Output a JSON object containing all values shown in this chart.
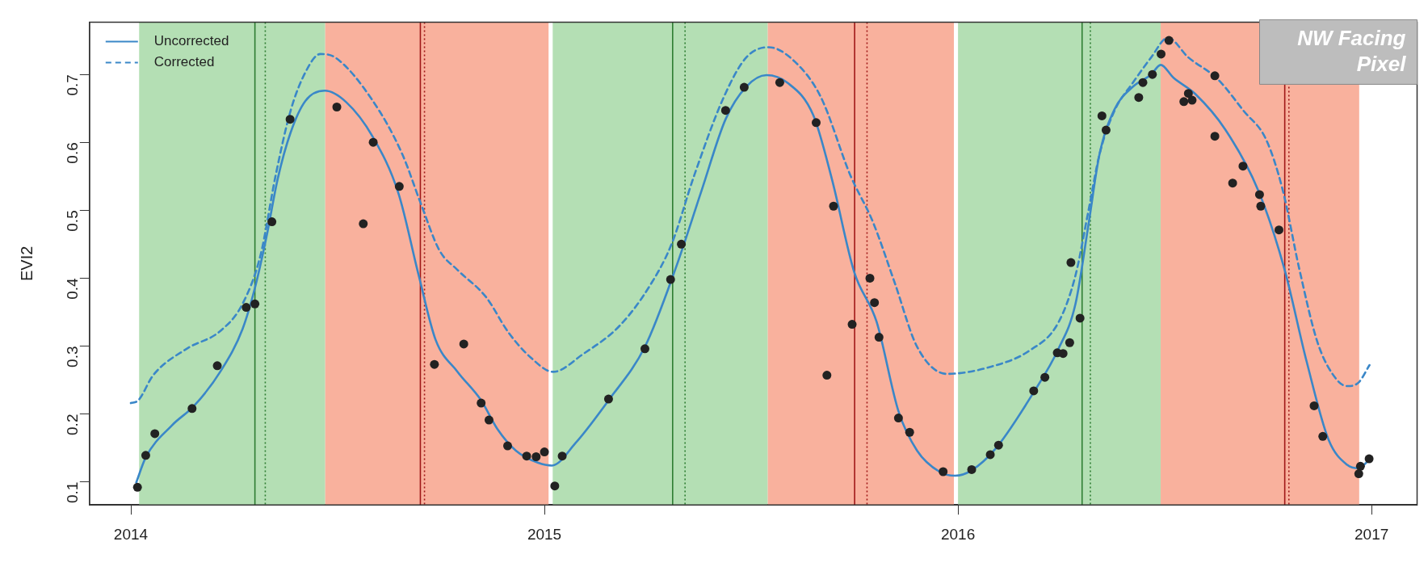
{
  "chart_data": {
    "type": "line",
    "ylabel": "EVI2",
    "xlim": [
      2013.9,
      2017.11
    ],
    "ylim": [
      0.066,
      0.777
    ],
    "xticks": [
      2014,
      2015,
      2016,
      2017
    ],
    "yticks": [
      0.1,
      0.2,
      0.3,
      0.4,
      0.5,
      0.6,
      0.7
    ],
    "grid": false,
    "legend": "top left",
    "annotations": [
      "NW Facing Pixel"
    ],
    "bands": [
      {
        "axis": "x",
        "from": 2014.02,
        "to": 2014.47,
        "color": "#b4dfb4"
      },
      {
        "axis": "x",
        "from": 2014.47,
        "to": 2015.01,
        "color": "#f9b19d"
      },
      {
        "axis": "x",
        "from": 2015.02,
        "to": 2015.54,
        "color": "#b4dfb4"
      },
      {
        "axis": "x",
        "from": 2015.54,
        "to": 2015.99,
        "color": "#f9b19d"
      },
      {
        "axis": "x",
        "from": 2016.0,
        "to": 2016.49,
        "color": "#b4dfb4"
      },
      {
        "axis": "x",
        "from": 2016.49,
        "to": 2016.97,
        "color": "#f9b19d"
      }
    ],
    "ref_lines": [
      {
        "axis": "x",
        "value": 2014.3,
        "color": "#2e7d32",
        "line_style": "solid"
      },
      {
        "axis": "x",
        "value": 2014.325,
        "color": "#2e7d32",
        "line_style": "dotted"
      },
      {
        "axis": "x",
        "value": 2014.7,
        "color": "#a01818",
        "line_style": "solid"
      },
      {
        "axis": "x",
        "value": 2014.71,
        "color": "#a01818",
        "line_style": "dotted"
      },
      {
        "axis": "x",
        "value": 2015.31,
        "color": "#2e7d32",
        "line_style": "solid"
      },
      {
        "axis": "x",
        "value": 2015.34,
        "color": "#2e7d32",
        "line_style": "dotted"
      },
      {
        "axis": "x",
        "value": 2015.75,
        "color": "#a01818",
        "line_style": "solid"
      },
      {
        "axis": "x",
        "value": 2015.78,
        "color": "#a01818",
        "line_style": "dotted"
      },
      {
        "axis": "x",
        "value": 2016.3,
        "color": "#2e7d32",
        "line_style": "solid"
      },
      {
        "axis": "x",
        "value": 2016.32,
        "color": "#2e7d32",
        "line_style": "dotted"
      },
      {
        "axis": "x",
        "value": 2016.79,
        "color": "#a01818",
        "line_style": "solid"
      },
      {
        "axis": "x",
        "value": 2016.8,
        "color": "#a01818",
        "line_style": "dotted"
      }
    ],
    "series": [
      {
        "name": "Uncorrected",
        "type": "line",
        "color": "#3a87c8",
        "marker": "none",
        "line_style": "solid",
        "x": [
          2014.013,
          2014.036,
          2014.099,
          2014.153,
          2014.216,
          2014.27,
          2014.301,
          2014.328,
          2014.355,
          2014.386,
          2014.422,
          2014.469,
          2014.521,
          2014.584,
          2014.647,
          2014.696,
          2014.737,
          2014.79,
          2014.847,
          2014.886,
          2014.931,
          2014.985,
          2015.018,
          2015.075,
          2015.155,
          2015.243,
          2015.317,
          2015.38,
          2015.438,
          2015.488,
          2015.537,
          2015.587,
          2015.65,
          2015.695,
          2015.749,
          2015.803,
          2015.856,
          2015.901,
          2015.955,
          2015.993,
          2016.033,
          2016.091,
          2016.181,
          2016.243,
          2016.284,
          2016.315,
          2016.342,
          2016.378,
          2016.423,
          2016.467,
          2016.49,
          2016.521,
          2016.574,
          2016.646,
          2016.726,
          2016.789,
          2016.843,
          2016.896,
          2016.941,
          2016.968,
          2016.995
        ],
        "values": [
          0.099,
          0.136,
          0.183,
          0.212,
          0.262,
          0.325,
          0.388,
          0.461,
          0.546,
          0.614,
          0.661,
          0.676,
          0.659,
          0.609,
          0.525,
          0.404,
          0.309,
          0.262,
          0.22,
          0.178,
          0.146,
          0.128,
          0.124,
          0.157,
          0.22,
          0.299,
          0.414,
          0.529,
          0.634,
          0.682,
          0.699,
          0.688,
          0.64,
          0.546,
          0.409,
          0.336,
          0.204,
          0.146,
          0.115,
          0.109,
          0.117,
          0.149,
          0.23,
          0.296,
          0.362,
          0.477,
          0.582,
          0.648,
          0.682,
          0.7,
          0.714,
          0.695,
          0.671,
          0.619,
          0.529,
          0.414,
          0.277,
          0.162,
          0.125,
          0.12,
          0.133
        ]
      },
      {
        "name": "Corrected",
        "type": "line",
        "color": "#3a87c8",
        "marker": "none",
        "line_style": "dashed",
        "x": [
          2014.0,
          2014.018,
          2014.054,
          2014.135,
          2014.216,
          2014.27,
          2014.314,
          2014.35,
          2014.386,
          2014.422,
          2014.458,
          2014.494,
          2014.584,
          2014.656,
          2014.701,
          2014.746,
          2014.79,
          2014.859,
          2014.913,
          2014.967,
          2015.021,
          2015.093,
          2015.182,
          2015.254,
          2015.308,
          2015.362,
          2015.434,
          2015.488,
          2015.542,
          2015.605,
          2015.668,
          2015.74,
          2015.794,
          2015.847,
          2015.901,
          2015.973,
          2016.082,
          2016.172,
          2016.243,
          2016.284,
          2016.315,
          2016.342,
          2016.378,
          2016.423,
          2016.467,
          2016.507,
          2016.557,
          2016.628,
          2016.691,
          2016.745,
          2016.785,
          2016.825,
          2016.87,
          2016.915,
          2016.941,
          2016.968,
          2016.995
        ],
        "values": [
          0.216,
          0.22,
          0.257,
          0.296,
          0.322,
          0.362,
          0.435,
          0.551,
          0.646,
          0.703,
          0.73,
          0.725,
          0.662,
          0.583,
          0.51,
          0.441,
          0.412,
          0.372,
          0.32,
          0.283,
          0.262,
          0.288,
          0.33,
          0.388,
          0.451,
          0.551,
          0.667,
          0.725,
          0.74,
          0.719,
          0.667,
          0.551,
          0.483,
          0.393,
          0.299,
          0.259,
          0.27,
          0.293,
          0.335,
          0.404,
          0.498,
          0.582,
          0.646,
          0.688,
          0.725,
          0.754,
          0.725,
          0.693,
          0.646,
          0.604,
          0.53,
          0.414,
          0.304,
          0.251,
          0.241,
          0.246,
          0.272
        ]
      },
      {
        "type": "scatter",
        "color": "#222222",
        "marker": "circle",
        "x": [
          2014.016,
          2014.036,
          2014.058,
          2014.148,
          2014.209,
          2014.279,
          2014.3,
          2014.341,
          2014.385,
          2014.498,
          2014.562,
          2014.586,
          2014.649,
          2014.734,
          2014.805,
          2014.847,
          2014.866,
          2014.911,
          2014.957,
          2014.98,
          2015.0,
          2015.025,
          2015.043,
          2015.155,
          2015.243,
          2015.305,
          2015.331,
          2015.438,
          2015.483,
          2015.569,
          2015.657,
          2015.699,
          2015.683,
          2015.744,
          2015.787,
          2015.798,
          2015.809,
          2015.856,
          2015.883,
          2015.964,
          2016.033,
          2016.078,
          2016.098,
          2016.183,
          2016.21,
          2016.24,
          2016.254,
          2016.27,
          2016.295,
          2016.273,
          2016.348,
          2016.358,
          2016.437,
          2016.447,
          2016.47,
          2016.491,
          2016.51,
          2016.546,
          2016.557,
          2016.566,
          2016.621,
          2016.621,
          2016.664,
          2016.689,
          2016.729,
          2016.732,
          2016.776,
          2016.861,
          2016.882,
          2016.969,
          2016.973,
          2016.994
        ],
        "values": [
          0.092,
          0.139,
          0.171,
          0.208,
          0.271,
          0.357,
          0.362,
          0.483,
          0.634,
          0.652,
          0.48,
          0.6,
          0.535,
          0.273,
          0.303,
          0.216,
          0.191,
          0.153,
          0.138,
          0.137,
          0.144,
          0.094,
          0.138,
          0.222,
          0.296,
          0.398,
          0.45,
          0.647,
          0.681,
          0.688,
          0.629,
          0.506,
          0.257,
          0.332,
          0.4,
          0.364,
          0.313,
          0.194,
          0.173,
          0.115,
          0.118,
          0.14,
          0.154,
          0.234,
          0.254,
          0.29,
          0.289,
          0.305,
          0.341,
          0.423,
          0.639,
          0.618,
          0.666,
          0.688,
          0.7,
          0.73,
          0.75,
          0.66,
          0.672,
          0.662,
          0.698,
          0.609,
          0.54,
          0.565,
          0.523,
          0.506,
          0.471,
          0.212,
          0.167,
          0.112,
          0.123,
          0.134
        ]
      }
    ]
  }
}
